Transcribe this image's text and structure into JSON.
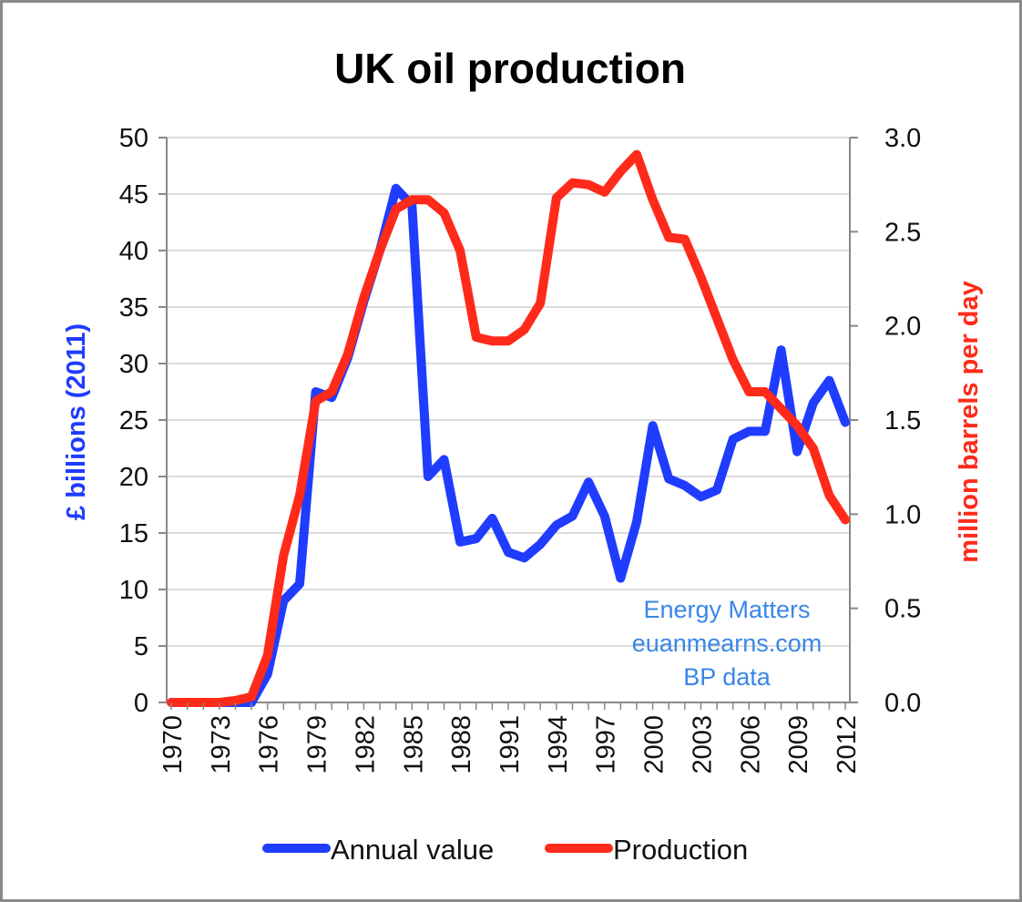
{
  "chart_data": {
    "type": "line",
    "title": "UK oil production",
    "y_left_label": "£ billions (2011)",
    "y_right_label": "million barrels per day",
    "y_left_range": [
      0,
      50
    ],
    "y_right_range": [
      0.0,
      3.0
    ],
    "y_left_ticks": [
      "0",
      "5",
      "10",
      "15",
      "20",
      "25",
      "30",
      "35",
      "40",
      "45",
      "50"
    ],
    "y_right_ticks": [
      "0.0",
      "0.5",
      "1.0",
      "1.5",
      "2.0",
      "2.5",
      "3.0"
    ],
    "x_tick_labels": [
      "1970",
      "1973",
      "1976",
      "1979",
      "1982",
      "1985",
      "1988",
      "1991",
      "1994",
      "1997",
      "2000",
      "2003",
      "2006",
      "2009",
      "2012"
    ],
    "x": [
      1970,
      1971,
      1972,
      1973,
      1974,
      1975,
      1976,
      1977,
      1978,
      1979,
      1980,
      1981,
      1982,
      1983,
      1984,
      1985,
      1986,
      1987,
      1988,
      1989,
      1990,
      1991,
      1992,
      1993,
      1994,
      1995,
      1996,
      1997,
      1998,
      1999,
      2000,
      2001,
      2002,
      2003,
      2004,
      2005,
      2006,
      2007,
      2008,
      2009,
      2010,
      2011,
      2012
    ],
    "grid": true,
    "legend_position": "bottom",
    "annotation": [
      "Energy Matters",
      "euanmearns.com",
      "BP data"
    ],
    "colors": {
      "annual_value": "#1f3cff",
      "production": "#ff2a1a",
      "y_left_label": "#1f3cff",
      "y_right_label": "#ff2a1a",
      "annotation": "#3a86e8"
    },
    "series": [
      {
        "name": "Annual value",
        "axis": "left",
        "values": [
          0,
          0,
          0,
          0,
          0,
          0,
          2.5,
          9,
          10.5,
          27.5,
          27,
          30.5,
          35.5,
          40,
          45.5,
          44,
          20,
          21.5,
          14.2,
          14.5,
          16.3,
          13.3,
          12.8,
          14,
          15.7,
          16.5,
          19.5,
          16.5,
          11,
          16,
          24.5,
          19.8,
          19.2,
          18.2,
          18.8,
          23.3,
          24,
          24,
          31.2,
          22.2,
          26.5,
          28.5,
          24.8
        ]
      },
      {
        "name": "Production",
        "axis": "right",
        "values": [
          0.0,
          0.0,
          0.0,
          0.0,
          0.01,
          0.03,
          0.25,
          0.78,
          1.1,
          1.6,
          1.65,
          1.85,
          2.15,
          2.4,
          2.62,
          2.67,
          2.67,
          2.6,
          2.4,
          1.94,
          1.92,
          1.92,
          1.98,
          2.12,
          2.68,
          2.76,
          2.75,
          2.71,
          2.82,
          2.91,
          2.67,
          2.47,
          2.46,
          2.26,
          2.04,
          1.82,
          1.65,
          1.65,
          1.56,
          1.47,
          1.35,
          1.1,
          0.97
        ]
      }
    ]
  }
}
